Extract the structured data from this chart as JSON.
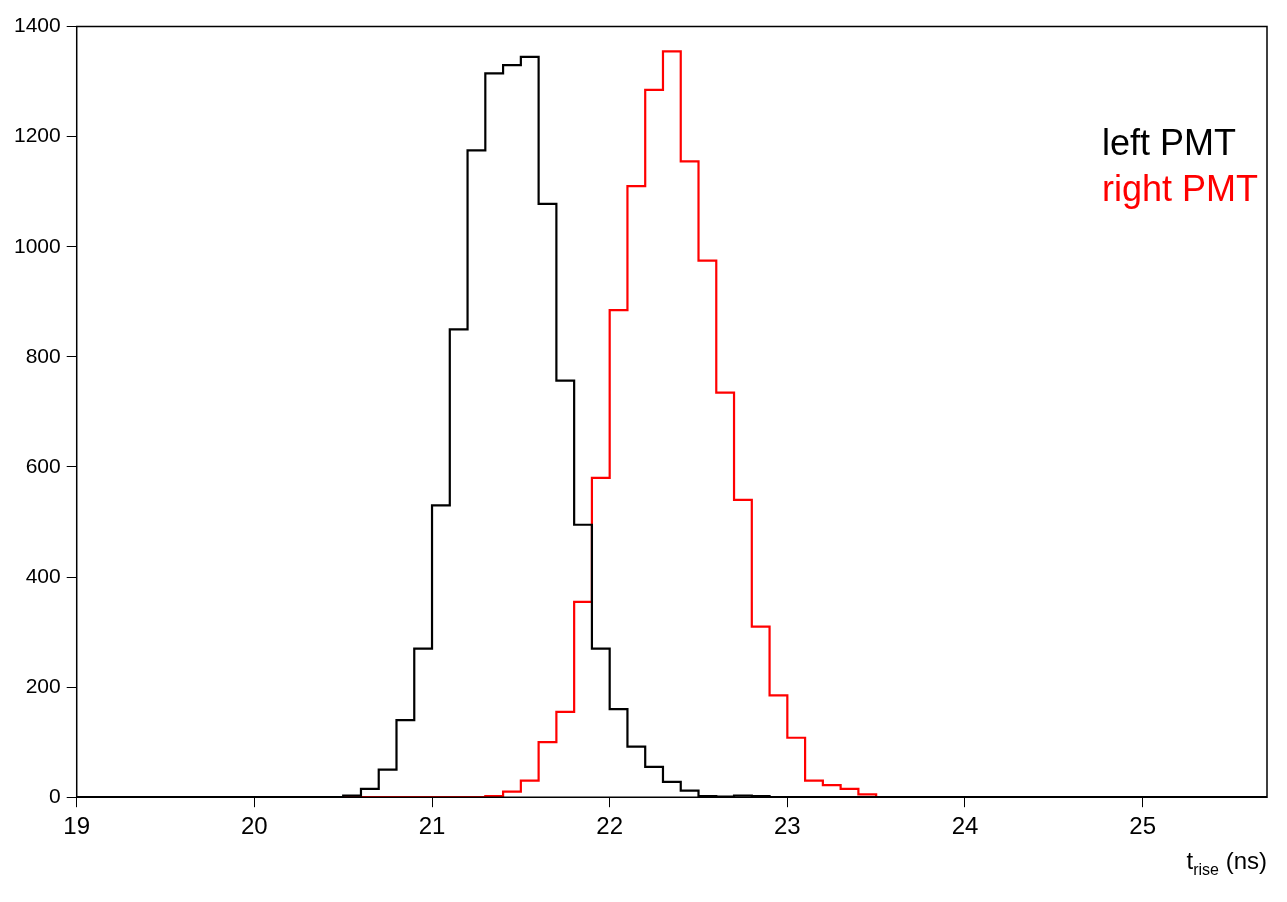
{
  "chart_data": {
    "type": "histogram",
    "xlabel": "t$_{rise}$ (ns)",
    "bins": [
      19,
      19.1,
      19.2,
      19.3,
      19.4,
      19.5,
      19.6,
      19.7,
      19.8,
      19.9,
      20,
      20.1,
      20.2,
      20.3,
      20.4,
      20.5,
      20.6,
      20.7,
      20.8,
      20.9,
      21,
      21.1,
      21.2,
      21.3,
      21.4,
      21.5,
      21.6,
      21.7,
      21.8,
      21.9,
      22,
      22.1,
      22.2,
      22.3,
      22.4,
      22.5,
      22.6,
      22.7,
      22.8,
      22.9,
      23,
      23.1,
      23.2,
      23.3,
      23.4,
      23.5,
      23.6,
      23.7,
      23.8,
      23.9,
      24,
      24.1,
      24.2,
      24.3,
      24.4,
      24.5,
      24.6,
      24.7,
      24.8,
      24.9,
      25,
      25.1,
      25.2,
      25.3,
      25.4,
      25.5,
      25.6,
      25.7
    ],
    "series": [
      {
        "name": "left PMT",
        "color": "#000000",
        "values": [
          0,
          0,
          0,
          0,
          0,
          0,
          0,
          0,
          0,
          0,
          0,
          0,
          0,
          0,
          0,
          3,
          15,
          50,
          140,
          270,
          530,
          850,
          1175,
          1315,
          1330,
          1345,
          1078,
          757,
          495,
          270,
          160,
          92,
          55,
          28,
          12,
          2,
          1,
          3,
          2,
          0,
          0,
          0,
          0,
          0,
          0,
          0,
          0,
          0,
          0,
          0,
          0,
          0,
          0,
          0,
          0,
          0,
          0,
          0,
          0,
          0,
          0,
          0,
          0,
          0,
          0,
          0,
          0
        ]
      },
      {
        "name": "right PMT",
        "color": "#ff0000",
        "values": [
          0,
          0,
          0,
          0,
          0,
          0,
          0,
          0,
          0,
          0,
          0,
          0,
          0,
          0,
          0,
          0,
          0,
          0,
          0,
          0,
          0,
          0,
          0,
          2,
          10,
          30,
          100,
          155,
          355,
          580,
          885,
          1110,
          1285,
          1355,
          1155,
          975,
          735,
          540,
          310,
          185,
          108,
          30,
          22,
          15,
          5,
          0,
          0,
          0,
          0,
          0,
          0,
          0,
          0,
          0,
          0,
          0,
          0,
          0,
          0,
          0,
          0,
          0,
          0,
          0,
          0,
          0,
          0
        ]
      }
    ],
    "xlim": [
      19,
      25.7
    ],
    "xticks": [
      19,
      20,
      21,
      22,
      23,
      24,
      25
    ],
    "ylim": [
      0,
      1400
    ],
    "yticks": [
      0,
      200,
      400,
      600,
      800,
      1000,
      1200,
      1400
    ],
    "legend": "top right",
    "grid": false
  }
}
